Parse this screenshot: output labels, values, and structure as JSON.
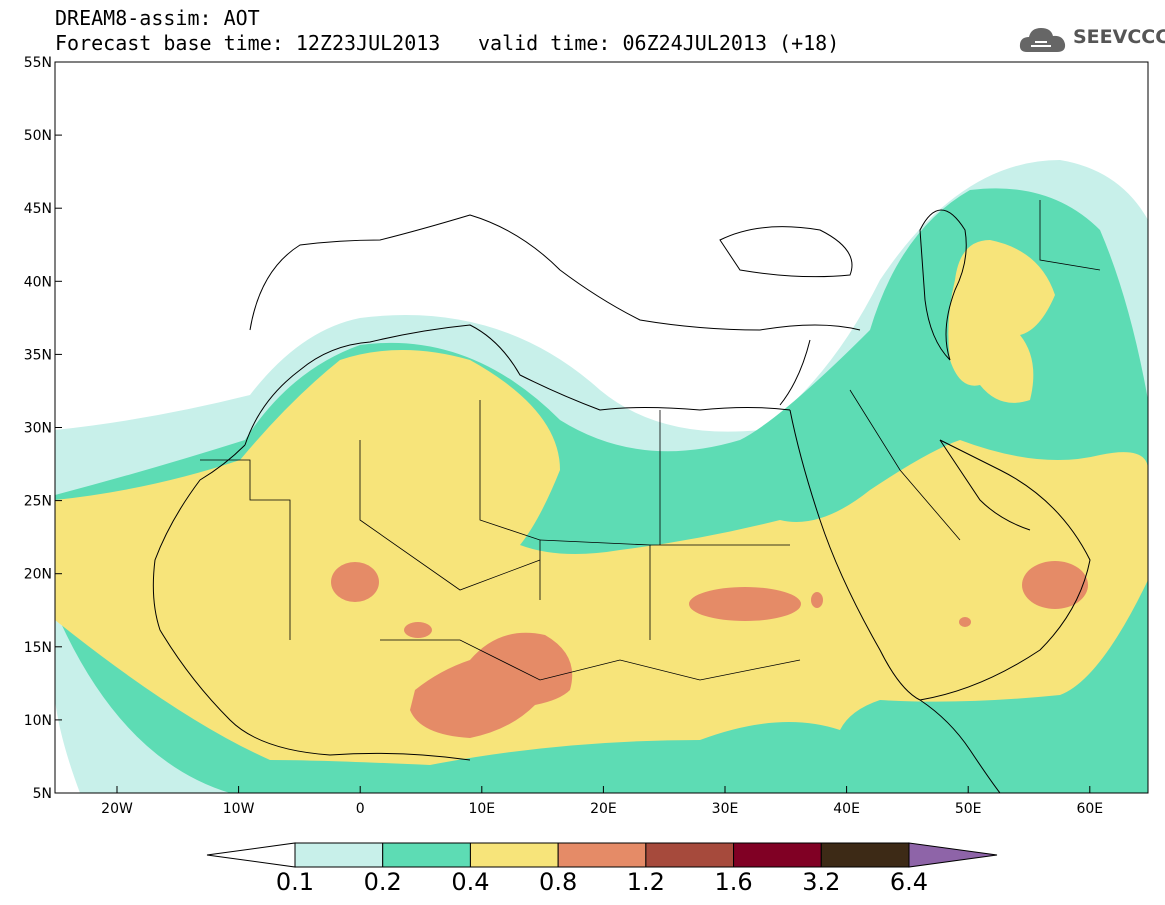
{
  "header": {
    "title": "DREAM8-assim: AOT",
    "base_time": "Forecast base time: 12Z23JUL2013",
    "valid_time": "valid time: 06Z24JUL2013 (+18)",
    "logo_text": "SEEVCCC"
  },
  "axes": {
    "lat_ticks": [
      "55N",
      "50N",
      "45N",
      "40N",
      "35N",
      "30N",
      "25N",
      "20N",
      "15N",
      "10N",
      "5N"
    ],
    "lon_ticks": [
      "20W",
      "10W",
      "0",
      "10E",
      "20E",
      "30E",
      "40E",
      "50E",
      "60E"
    ]
  },
  "colorbar": {
    "labels": [
      "0.1",
      "0.2",
      "0.4",
      "0.8",
      "1.2",
      "1.6",
      "3.2",
      "6.4"
    ],
    "colors": [
      "#ffffff",
      "#c8f0ea",
      "#5ddcb4",
      "#f7e47a",
      "#e58b67",
      "#a64a3c",
      "#800024",
      "#3d2a16",
      "#8e64a8"
    ]
  },
  "fields": {
    "colors": {
      "very_light": "#c8f0ea",
      "light": "#5ddcb4",
      "medium": "#f7e47a",
      "high": "#e58b67"
    }
  }
}
